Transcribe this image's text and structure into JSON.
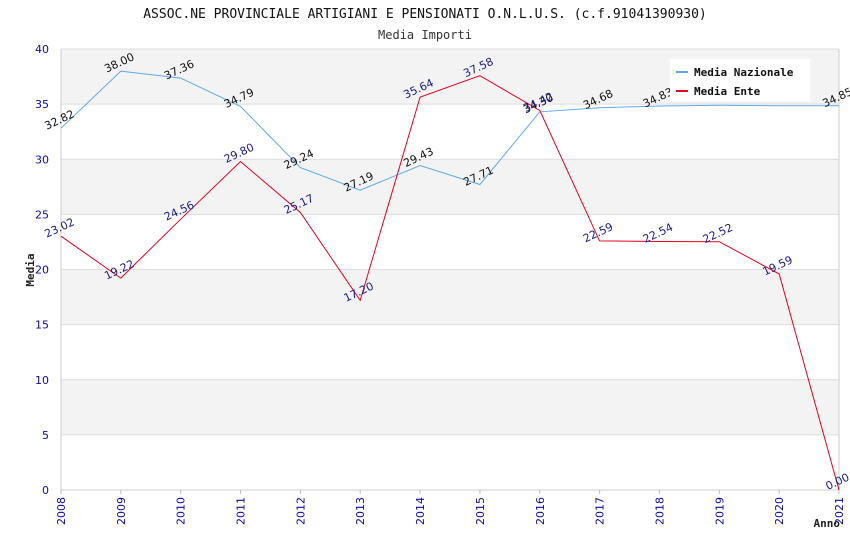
{
  "chart_data": {
    "type": "line",
    "title": "ASSOC.NE PROVINCIALE ARTIGIANI E PENSIONATI O.N.L.U.S. (c.f.91041390930)",
    "subtitle": "Media Importi",
    "xlabel": "Anno",
    "ylabel": "Media",
    "ylim": [
      0,
      40
    ],
    "yticks": [
      0,
      5,
      10,
      15,
      20,
      25,
      30,
      35,
      40
    ],
    "x": [
      "2008",
      "2009",
      "2010",
      "2011",
      "2012",
      "2013",
      "2014",
      "2015",
      "2016",
      "2017",
      "2018",
      "2019",
      "2020",
      "2021"
    ],
    "grid": true,
    "legend_position": "top-right",
    "series": [
      {
        "name": "Media Nazionale",
        "color": "#5fa8e8",
        "label_color": "#111111",
        "values": [
          32.82,
          38.0,
          37.36,
          34.79,
          29.24,
          27.19,
          29.43,
          27.71,
          34.3,
          34.68,
          34.83,
          34.89,
          34.85,
          34.85
        ],
        "labels": [
          "32.82",
          "38.00",
          "37.36",
          "34.79",
          "29.24",
          "27.19",
          "29.43",
          "27.71",
          "34.30",
          "34.68",
          "34.83",
          "",
          "",
          "34.85"
        ]
      },
      {
        "name": "Media Ente",
        "color": "#e8001c",
        "label_color": "#1a1a8c",
        "values": [
          23.02,
          19.22,
          24.56,
          29.8,
          25.17,
          17.2,
          35.64,
          37.58,
          34.42,
          22.59,
          22.54,
          22.52,
          19.59,
          0.0
        ],
        "labels": [
          "23.02",
          "19.22",
          "24.56",
          "29.80",
          "25.17",
          "17.20",
          "35.64",
          "37.58",
          "34.42",
          "22.59",
          "22.54",
          "22.52",
          "19.59",
          "0.00"
        ]
      }
    ]
  }
}
